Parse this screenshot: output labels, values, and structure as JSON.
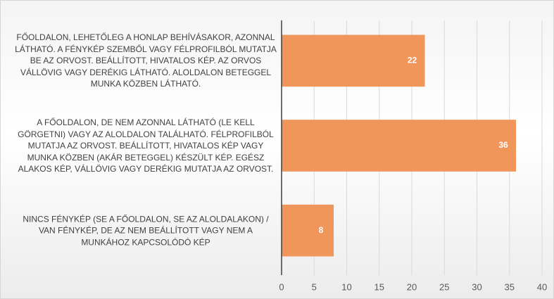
{
  "chart_data": {
    "type": "hbar",
    "categories": [
      "FŐOLDALON, LEHETŐLEG A HONLAP BEHÍVÁSAKOR, AZONNAL LÁTHATÓ. A FÉNYKÉP SZEMBŐL VAGY FÉLPROFILBÓL MUTATJA BE AZ ORVOST. BEÁLLÍTOTT, HIVATALOS KÉP. AZ ORVOS VÁLLÖVIG VAGY DERÉKIG LÁTHATÓ. ALOLDALON BETEGGEL MUNKA KÖZBEN LÁTHATÓ.",
      "A FŐOLDALON, DE NEM AZONNAL LÁTHATÓ (LE KELL GÖRGETNI) VAGY AZ ALOLDALON TALÁLHATÓ. FÉLPROFILBÓL MUTATJA AZ ORVOST. BEÁLLÍTOTT, HIVATALOS KÉP VAGY MUNKA KÖZBEN (AKÁR BETEGGEL) KÉSZÜLT KÉP. EGÉSZ ALAKOS KÉP, VÁLLÖVIG VAGY DERÉKIG MUTATJA AZ ORVOST.",
      "NINCS FÉNYKÉP (SE A FŐOLDALON, SE AZ ALOLDALAKON) / VAN FÉNYKÉP, DE AZ NEM BEÁLLÍTOTT VAGY NEM A MUNKÁHOZ KAPCSOLÓDÓ KÉP"
    ],
    "values": [
      22,
      36,
      8
    ],
    "color": "#f0965a",
    "xlim": [
      0,
      40
    ],
    "xticks": [
      0,
      5,
      10,
      15,
      20,
      25,
      30,
      35,
      40
    ],
    "grid": true
  }
}
